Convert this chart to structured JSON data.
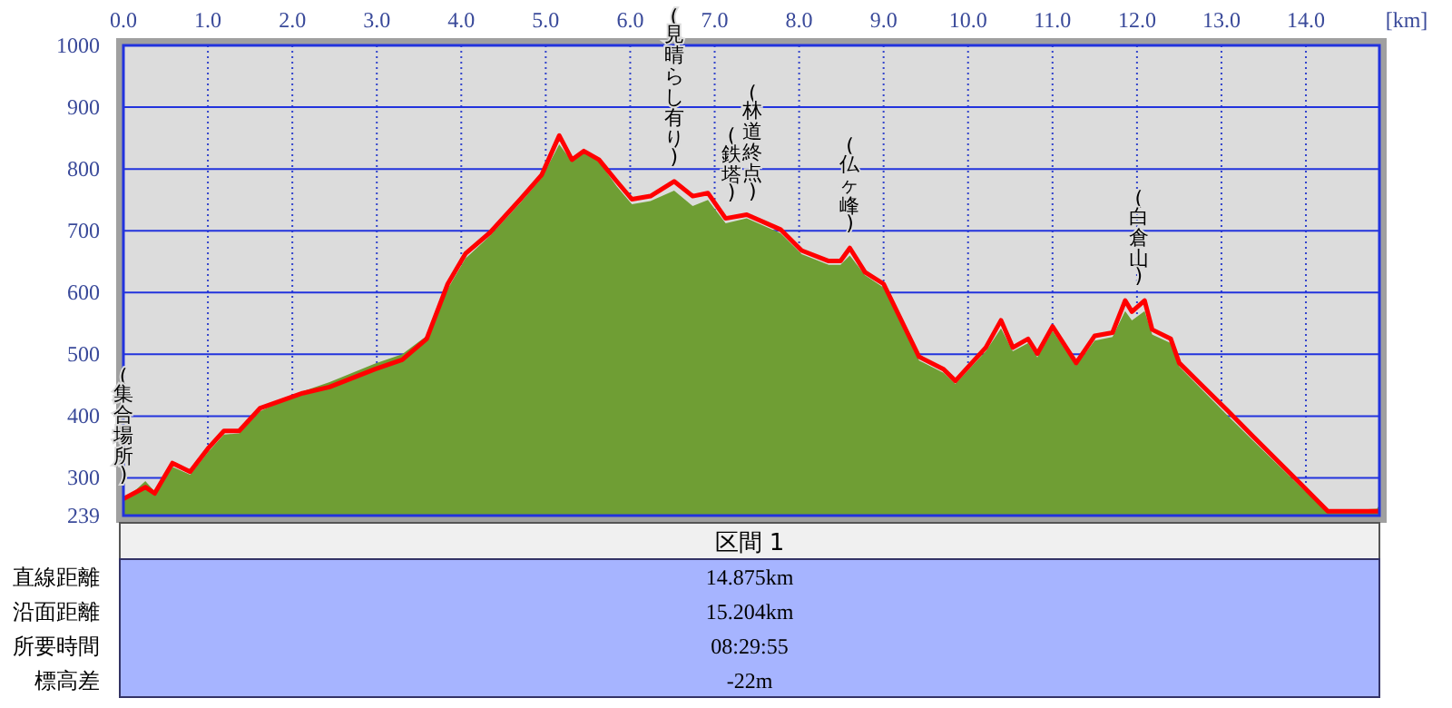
{
  "chart_data": [
    {
      "type": "line",
      "xlabel": "[km]",
      "xlim": [
        0,
        14.87
      ],
      "xticks": [
        {
          "value": 0,
          "label": "0.0"
        },
        {
          "value": 1,
          "label": "1.0"
        },
        {
          "value": 2,
          "label": "2.0"
        },
        {
          "value": 3,
          "label": "3.0"
        },
        {
          "value": 4,
          "label": "4.0"
        },
        {
          "value": 5,
          "label": "5.0"
        },
        {
          "value": 6,
          "label": "6.0"
        },
        {
          "value": 7,
          "label": "7.0"
        },
        {
          "value": 8,
          "label": "8.0"
        },
        {
          "value": 9,
          "label": "9.0"
        },
        {
          "value": 10,
          "label": "10.0"
        },
        {
          "value": 11,
          "label": "11.0"
        },
        {
          "value": 12,
          "label": "12.0"
        },
        {
          "value": 13,
          "label": "13.0"
        },
        {
          "value": 14,
          "label": "14.0"
        }
      ],
      "ylim": [
        239,
        1000
      ],
      "yticks": [
        239,
        300,
        400,
        500,
        600,
        700,
        800,
        900,
        1000
      ],
      "grid": true,
      "series": [
        {
          "type": "area",
          "color": "#6f9e34",
          "x": [
            0.0,
            0.26,
            0.37,
            0.58,
            0.79,
            1.01,
            1.19,
            1.37,
            1.62,
            2.12,
            2.44,
            2.98,
            3.3,
            3.59,
            3.84,
            4.05,
            4.34,
            4.7,
            4.95,
            5.16,
            5.31,
            5.45,
            5.63,
            5.84,
            6.02,
            6.24,
            6.52,
            6.74,
            6.92,
            7.13,
            7.38,
            7.78,
            8.03,
            8.35,
            8.49,
            8.6,
            8.78,
            9.0,
            9.42,
            9.71,
            9.85,
            10.21,
            10.39,
            10.53,
            10.71,
            10.82,
            11.0,
            11.28,
            11.5,
            11.71,
            11.86,
            11.94,
            12.09,
            12.18,
            12.4,
            12.5,
            12.79,
            13.08,
            13.36,
            13.94,
            14.26,
            14.84,
            14.87
          ],
          "values": [
            262,
            295,
            278,
            318,
            305,
            343,
            370,
            372,
            408,
            440,
            455,
            485,
            500,
            530,
            606,
            655,
            692,
            745,
            785,
            840,
            812,
            828,
            812,
            772,
            743,
            748,
            765,
            740,
            750,
            712,
            720,
            696,
            662,
            645,
            645,
            660,
            628,
            608,
            490,
            470,
            452,
            505,
            542,
            505,
            518,
            495,
            538,
            482,
            522,
            528,
            570,
            555,
            570,
            532,
            518,
            480,
            440,
            400,
            362,
            285,
            246,
            250,
            256
          ]
        },
        {
          "type": "line",
          "color": "#ff0000",
          "x": [
            0.0,
            0.26,
            0.37,
            0.58,
            0.79,
            1.01,
            1.19,
            1.37,
            1.62,
            2.12,
            2.44,
            2.98,
            3.3,
            3.59,
            3.84,
            4.05,
            4.34,
            4.7,
            4.95,
            5.16,
            5.31,
            5.45,
            5.63,
            5.84,
            6.02,
            6.24,
            6.52,
            6.74,
            6.92,
            7.13,
            7.38,
            7.78,
            8.03,
            8.35,
            8.49,
            8.6,
            8.78,
            9.0,
            9.42,
            9.71,
            9.85,
            10.21,
            10.39,
            10.53,
            10.71,
            10.82,
            11.0,
            11.28,
            11.5,
            11.71,
            11.86,
            11.94,
            12.09,
            12.18,
            12.4,
            12.5,
            12.79,
            13.08,
            13.36,
            13.94,
            14.26,
            14.87
          ],
          "values": [
            266,
            285,
            275,
            324,
            310,
            349,
            376,
            376,
            413,
            437,
            447,
            476,
            491,
            525,
            614,
            663,
            697,
            751,
            790,
            854,
            815,
            829,
            815,
            780,
            751,
            756,
            780,
            756,
            761,
            720,
            726,
            702,
            668,
            651,
            651,
            672,
            633,
            614,
            496,
            476,
            457,
            511,
            555,
            511,
            525,
            501,
            545,
            486,
            530,
            535,
            587,
            569,
            587,
            540,
            525,
            486,
            447,
            408,
            369,
            290,
            246,
            246
          ]
        }
      ],
      "annotations": [
        {
          "text": "(集合場所)",
          "x": 0.0,
          "y": 266
        },
        {
          "text": "(見晴らし有り)",
          "x": 6.52,
          "y": 780
        },
        {
          "text": "(鉄塔)",
          "x": 7.2,
          "y": 722
        },
        {
          "text": "(林道終点)",
          "x": 7.45,
          "y": 724
        },
        {
          "text": "(仏ヶ峰)",
          "x": 8.6,
          "y": 672
        },
        {
          "text": "(白倉山)",
          "x": 12.02,
          "y": 587
        }
      ]
    },
    {
      "type": "other",
      "title": "区間 1",
      "annotations": [
        "直線距離",
        "14.875km",
        "沿面距離",
        "15.204km",
        "所要時間",
        "08:29:55",
        "標高差",
        "-22m"
      ]
    }
  ]
}
